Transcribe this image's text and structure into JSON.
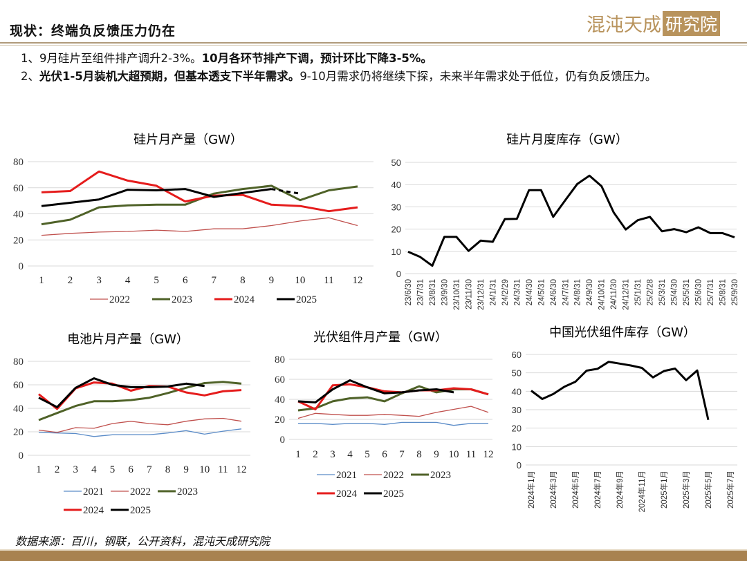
{
  "header": {
    "title": "现状：终端负反馈压力仍在",
    "logo_text": "混沌天成",
    "logo_box": "研究院"
  },
  "bullets": [
    {
      "plain": "1、9月硅片至组件排产调升2-3%。",
      "bold": "10月各环节排产下调，预计环比下降3-5%。"
    },
    {
      "plain_pre": "2、",
      "bold": "光伏1-5月装机大超预期，但基本透支下半年需求。",
      "plain": "9-10月需求仍将继续下探，未来半年需求处于低位，仍有负反馈压力。"
    }
  ],
  "source": "数据来源：百川，钢联，公开资料，混沌天成研究院",
  "colors": {
    "2021": "#5b8cc8",
    "2022": "#c0504d",
    "2023": "#4f6228",
    "2024": "#e51c1c",
    "2025": "#000000",
    "inventory": "#000000",
    "accent": "#a88250"
  },
  "chart_data": [
    {
      "type": "line",
      "title": "硅片月产量（GW）",
      "categories": [
        "1",
        "2",
        "3",
        "4",
        "5",
        "6",
        "7",
        "8",
        "9",
        "10",
        "11",
        "12"
      ],
      "ylim": [
        0,
        80
      ],
      "yticks": [
        0,
        20,
        40,
        60,
        80
      ],
      "legend": "bottom",
      "series": [
        {
          "name": "2022",
          "values": [
            23.5,
            25,
            26,
            26.5,
            27.5,
            26.5,
            28.5,
            28.5,
            31,
            34.5,
            37,
            31
          ]
        },
        {
          "name": "2023",
          "values": [
            32,
            35.5,
            45,
            46.5,
            47,
            47,
            55.5,
            59,
            61.5,
            50.5,
            58,
            61
          ]
        },
        {
          "name": "2024",
          "values": [
            56.5,
            57.5,
            72.5,
            65.5,
            61.5,
            49.5,
            54,
            54.5,
            47,
            46,
            42,
            45
          ]
        },
        {
          "name": "2025",
          "values": [
            46,
            48.5,
            51,
            58.5,
            58,
            59,
            53,
            56,
            59,
            null,
            null,
            null
          ],
          "forecast": {
            "from": 9,
            "values": [
              59,
              55.5
            ]
          }
        }
      ]
    },
    {
      "type": "line",
      "title": "硅片月度库存（GW）",
      "categories": [
        "23/6/30",
        "23/7/31",
        "23/8/31",
        "23/9/30",
        "23/10/31",
        "23/11/30",
        "23/12/31",
        "24/1/31",
        "24/2/29",
        "24/3/31",
        "24/4/30",
        "24/5/31",
        "24/6/30",
        "24/7/31",
        "24/8/31",
        "24/9/30",
        "24/10/31",
        "24/11/30",
        "24/12/31",
        "25/1/31",
        "25/2/28",
        "25/3/31",
        "25/4/30",
        "25/5/31",
        "25/6/30",
        "25/7/31",
        "25/8/31",
        "25/9/30"
      ],
      "ylim": [
        0,
        50
      ],
      "yticks": [
        0,
        10,
        20,
        30,
        40,
        50
      ],
      "series": [
        {
          "name": "inventory",
          "values": [
            9.8,
            7.5,
            3.5,
            16.5,
            16.5,
            10.2,
            14.8,
            14.3,
            24.5,
            24.6,
            37.5,
            37.5,
            25.5,
            33,
            40.3,
            44,
            39.3,
            27.5,
            19.8,
            24,
            25.5,
            19,
            20,
            18.6,
            20.8,
            18.2,
            18.2,
            16.3
          ]
        }
      ]
    },
    {
      "type": "line",
      "title": "电池片月产量（GW）",
      "categories": [
        "1",
        "2",
        "3",
        "4",
        "5",
        "6",
        "7",
        "8",
        "9",
        "10",
        "11",
        "12"
      ],
      "ylim": [
        0,
        80
      ],
      "yticks": [
        0,
        20,
        40,
        60,
        80
      ],
      "legend": "bottom",
      "series": [
        {
          "name": "2021",
          "values": [
            19.5,
            19,
            18.5,
            16,
            17.5,
            17.5,
            17.5,
            19,
            21,
            18,
            20.5,
            22.5
          ]
        },
        {
          "name": "2022",
          "values": [
            21.5,
            19.5,
            23.5,
            23,
            27,
            29,
            27,
            26,
            29,
            31,
            31.5,
            29
          ]
        },
        {
          "name": "2023",
          "values": [
            30,
            36,
            42,
            46,
            46,
            47,
            49,
            53,
            57.5,
            61.5,
            62.5,
            61
          ]
        },
        {
          "name": "2024",
          "values": [
            52,
            39.5,
            57,
            62,
            61,
            55,
            59,
            58.5,
            53.5,
            51,
            54.5,
            55.5
          ]
        },
        {
          "name": "2025",
          "values": [
            49,
            41,
            57.5,
            65.5,
            60,
            58,
            58,
            58.5,
            61,
            59,
            null,
            null
          ]
        }
      ]
    },
    {
      "type": "line",
      "title": "光伏组件月产量（GW）",
      "categories": [
        "1",
        "2",
        "3",
        "4",
        "5",
        "6",
        "7",
        "8",
        "9",
        "10",
        "11",
        "12"
      ],
      "ylim": [
        0,
        80
      ],
      "yticks": [
        0,
        20,
        40,
        60,
        80
      ],
      "legend": "bottom",
      "series": [
        {
          "name": "2021",
          "values": [
            16,
            16,
            15,
            16,
            16,
            15,
            17,
            17,
            17,
            14,
            16,
            16
          ]
        },
        {
          "name": "2022",
          "values": [
            21,
            26,
            25,
            24,
            24,
            25,
            24,
            23,
            27,
            30,
            33,
            27
          ]
        },
        {
          "name": "2023",
          "values": [
            29,
            31,
            38,
            41,
            42,
            38,
            46,
            53,
            47,
            50,
            50,
            45
          ]
        },
        {
          "name": "2024",
          "values": [
            38,
            30,
            54,
            55,
            52,
            48,
            47,
            49,
            49,
            51,
            50,
            45
          ]
        },
        {
          "name": "2025",
          "values": [
            38,
            37,
            50,
            59,
            52,
            46,
            47,
            49,
            50,
            47,
            null,
            null
          ]
        }
      ]
    },
    {
      "type": "line",
      "title": "中国光伏组件库存（GW）",
      "categories": [
        "2024年1月",
        "2024年2月",
        "2024年3月",
        "2024年4月",
        "2024年5月",
        "2024年6月",
        "2024年7月",
        "2024年8月",
        "2024年9月",
        "2024年10月",
        "2024年11月",
        "2024年12月",
        "2025年1月",
        "2025年2月",
        "2025年3月",
        "2025年4月",
        "2025年5月",
        "2025年6月",
        "2025年7月",
        "2025年8月"
      ],
      "tick_labels": [
        "2024年1月",
        "2024年3月",
        "2024年5月",
        "2024年7月",
        "2024年9月",
        "2024年11月",
        "2025年1月",
        "2025年3月",
        "2025年5月",
        "2025年7月"
      ],
      "ylim": [
        0,
        60
      ],
      "yticks": [
        0,
        10,
        20,
        30,
        40,
        50,
        60
      ],
      "series": [
        {
          "name": "inventory",
          "values": [
            40.3,
            35.8,
            38.5,
            42.5,
            45.2,
            51.2,
            52.2,
            56,
            55,
            54,
            52.7,
            47.5,
            51,
            52.3,
            46,
            51.3,
            24.5,
            null,
            null,
            null
          ]
        }
      ]
    }
  ]
}
